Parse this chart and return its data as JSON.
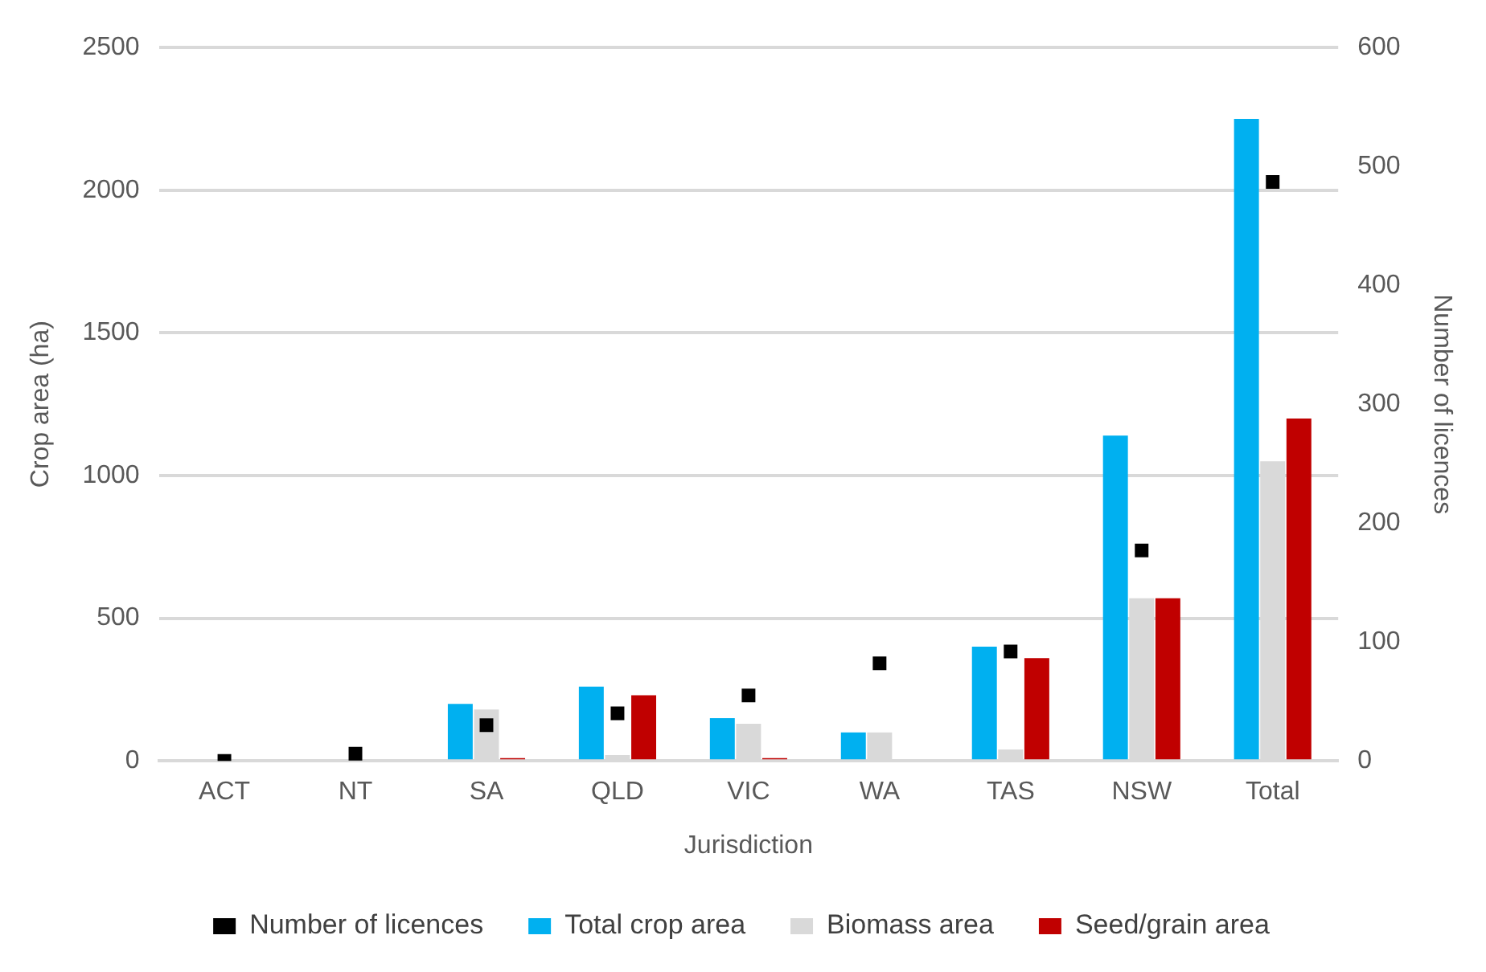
{
  "chart_data": {
    "type": "bar",
    "xlabel": "Jurisdiction",
    "ylabel": "Crop area (ha)",
    "y2label": "Number of licences",
    "categories": [
      "ACT",
      "NT",
      "SA",
      "QLD",
      "VIC",
      "WA",
      "TAS",
      "NSW",
      "Total"
    ],
    "series": [
      {
        "name": "Total crop area",
        "color": "#00b0f0",
        "values": [
          0,
          0,
          200,
          260,
          150,
          100,
          400,
          1140,
          2250
        ]
      },
      {
        "name": "Biomass area",
        "color": "#d9d9d9",
        "values": [
          0,
          0,
          180,
          20,
          130,
          100,
          40,
          570,
          1050
        ]
      },
      {
        "name": "Seed/grain area",
        "color": "#c00000",
        "values": [
          0,
          0,
          10,
          230,
          10,
          0,
          360,
          570,
          1200
        ]
      },
      {
        "name": "Number of licences",
        "color": "#000000",
        "type": "scatter",
        "axis": "y2",
        "marker": "square",
        "values": [
          0,
          6,
          30,
          40,
          55,
          82,
          92,
          177,
          487
        ]
      }
    ],
    "ylim": [
      0,
      2500
    ],
    "yticks": [
      0,
      500,
      1000,
      1500,
      2000,
      2500
    ],
    "y2lim": [
      0,
      600
    ],
    "y2ticks": [
      0,
      100,
      200,
      300,
      400,
      500,
      600
    ],
    "grid": "y",
    "legend": "bottom"
  }
}
